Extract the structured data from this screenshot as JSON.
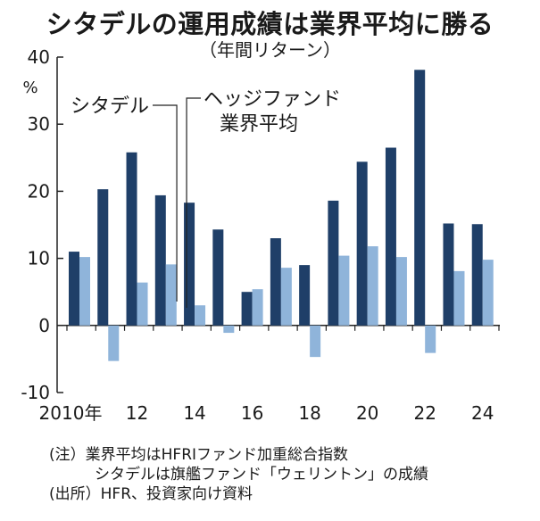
{
  "chart_data": {
    "type": "bar",
    "title": "シタデルの運用成績は業界平均に勝る",
    "subtitle": "（年間リターン）",
    "y_unit": "%",
    "ylim": [
      -10,
      40
    ],
    "yticks": [
      -10,
      0,
      10,
      20,
      30,
      40
    ],
    "categories": [
      "2010",
      "2011",
      "2012",
      "2013",
      "2014",
      "2015",
      "2016",
      "2017",
      "2018",
      "2019",
      "2020",
      "2021",
      "2022",
      "2023",
      "2024"
    ],
    "xtick_labels": [
      {
        "index": 0,
        "label": "2010年"
      },
      {
        "index": 2,
        "label": "12"
      },
      {
        "index": 4,
        "label": "14"
      },
      {
        "index": 6,
        "label": "16"
      },
      {
        "index": 8,
        "label": "18"
      },
      {
        "index": 10,
        "label": "20"
      },
      {
        "index": 12,
        "label": "22"
      },
      {
        "index": 14,
        "label": "24"
      }
    ],
    "series": [
      {
        "name": "シタデル",
        "color": "#1f3f68",
        "values": [
          11.0,
          20.3,
          25.8,
          19.4,
          18.3,
          14.3,
          5.0,
          13.0,
          9.0,
          18.6,
          24.4,
          26.5,
          38.1,
          15.2,
          15.1
        ]
      },
      {
        "name": "ヘッジファンド業界平均",
        "color": "#8fb4da",
        "values": [
          10.2,
          -5.3,
          6.4,
          9.1,
          3.0,
          -1.1,
          5.4,
          8.6,
          -4.7,
          10.4,
          11.8,
          10.2,
          -4.1,
          8.1,
          9.8
        ]
      }
    ],
    "legend_labels": [
      {
        "text": "シタデル"
      },
      {
        "text": "ヘッジファンド",
        "text2": "業界平均"
      }
    ],
    "grid": false
  },
  "notes": [
    "(注）業界平均はHFRIファンド加重総合指数",
    "シタデルは旗艦ファンド「ウェリントン」の成績",
    "(出所）HFR、投資家向け資料"
  ]
}
